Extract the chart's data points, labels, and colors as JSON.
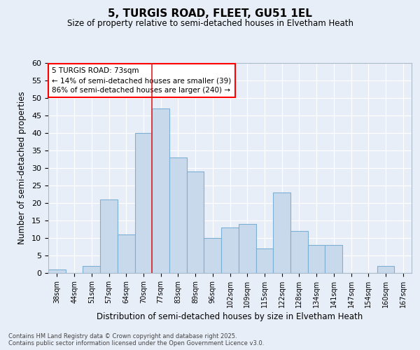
{
  "title": "5, TURGIS ROAD, FLEET, GU51 1EL",
  "subtitle": "Size of property relative to semi-detached houses in Elvetham Heath",
  "xlabel": "Distribution of semi-detached houses by size in Elvetham Heath",
  "ylabel": "Number of semi-detached properties",
  "categories": [
    "38sqm",
    "44sqm",
    "51sqm",
    "57sqm",
    "64sqm",
    "70sqm",
    "77sqm",
    "83sqm",
    "89sqm",
    "96sqm",
    "102sqm",
    "109sqm",
    "115sqm",
    "122sqm",
    "128sqm",
    "134sqm",
    "141sqm",
    "147sqm",
    "154sqm",
    "160sqm",
    "167sqm"
  ],
  "values": [
    1,
    0,
    2,
    21,
    11,
    40,
    47,
    33,
    29,
    10,
    13,
    14,
    7,
    23,
    12,
    8,
    8,
    0,
    0,
    2,
    0
  ],
  "bar_color": "#c8d9ec",
  "bar_edge_color": "#7bafd4",
  "annotation_label": "5 TURGIS ROAD: 73sqm",
  "annotation_line1": "← 14% of semi-detached houses are smaller (39)",
  "annotation_line2": "86% of semi-detached houses are larger (240) →",
  "marker_bar_index": 5,
  "marker_color": "#dd2222",
  "ylim": [
    0,
    60
  ],
  "yticks": [
    0,
    5,
    10,
    15,
    20,
    25,
    30,
    35,
    40,
    45,
    50,
    55,
    60
  ],
  "background_color": "#e8eef8",
  "grid_color": "#ffffff",
  "footer_line1": "Contains HM Land Registry data © Crown copyright and database right 2025.",
  "footer_line2": "Contains public sector information licensed under the Open Government Licence v3.0."
}
